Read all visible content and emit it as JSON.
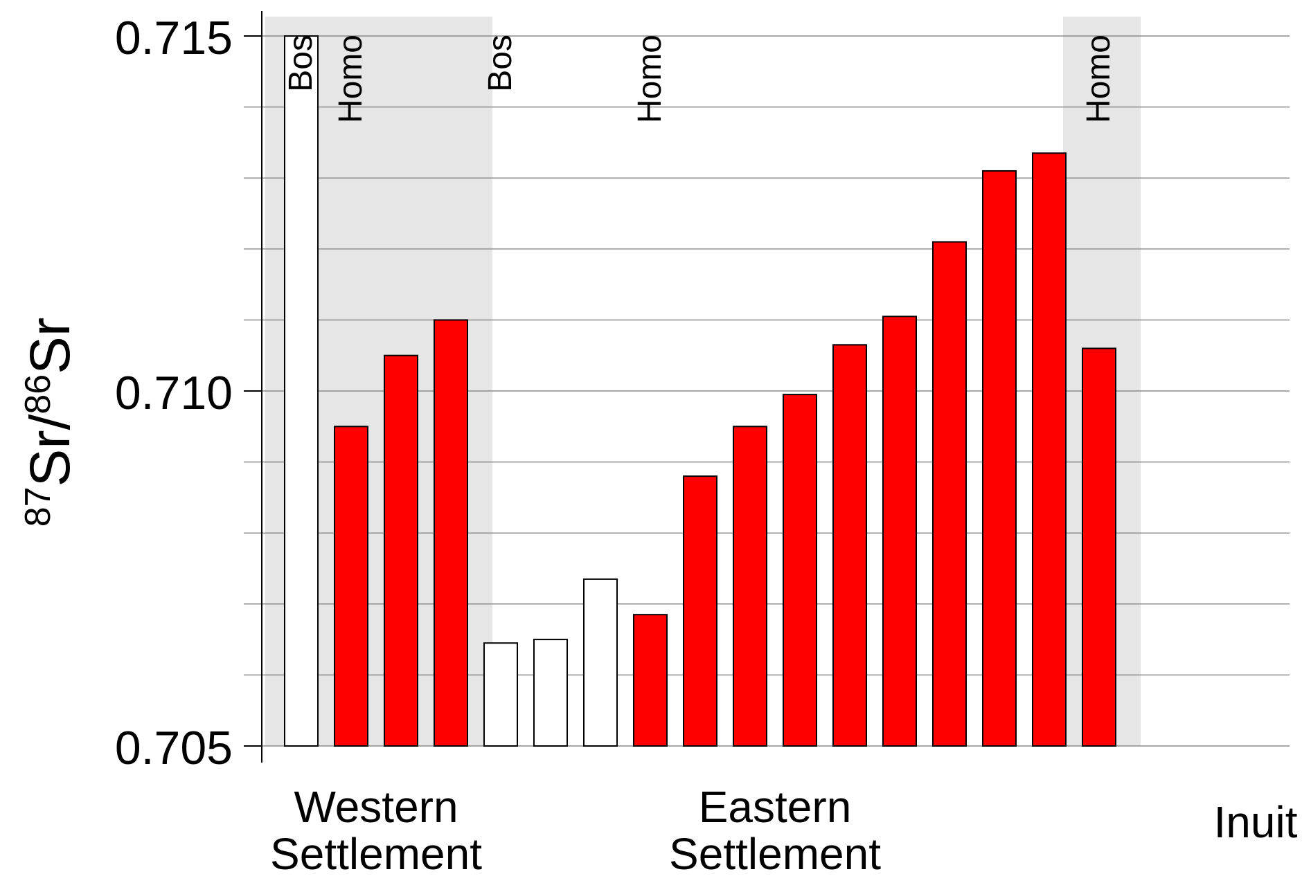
{
  "chart_data": {
    "type": "bar",
    "ylabel": {
      "prefix_sup": "87",
      "main1": "Sr/",
      "mid_sup": "86",
      "main2": "Sr"
    },
    "ylim": [
      0.705,
      0.715
    ],
    "yticks": [
      0.705,
      0.71,
      0.715
    ],
    "ytick_labels": [
      "0.705",
      "0.710",
      "0.715"
    ],
    "minor_step": 0.001,
    "groups": [
      {
        "label_lines": [
          "Western",
          "Settlement"
        ],
        "shaded": true,
        "bar_range": [
          0,
          3
        ]
      },
      {
        "label_lines": [
          "Eastern",
          "Settlement"
        ],
        "shaded": false,
        "bar_range": [
          4,
          15
        ]
      },
      {
        "label_lines": [
          "Inuit"
        ],
        "shaded": true,
        "bar_range": [
          16,
          16
        ]
      }
    ],
    "taxon_labels": [
      {
        "text": "Bos",
        "bar": 0
      },
      {
        "text": "Homo",
        "bar": 1
      },
      {
        "text": "Bos",
        "bar": 4
      },
      {
        "text": "Homo",
        "bar": 7
      },
      {
        "text": "Homo",
        "bar": 16
      }
    ],
    "bars": [
      {
        "taxon": "Bos",
        "settlement": "Western Settlement",
        "value": 0.715
      },
      {
        "taxon": "Homo",
        "settlement": "Western Settlement",
        "value": 0.7095
      },
      {
        "taxon": "Homo",
        "settlement": "Western Settlement",
        "value": 0.7105
      },
      {
        "taxon": "Homo",
        "settlement": "Western Settlement",
        "value": 0.711
      },
      {
        "taxon": "Bos",
        "settlement": "Eastern Settlement",
        "value": 0.70645
      },
      {
        "taxon": "Bos",
        "settlement": "Eastern Settlement",
        "value": 0.7065
      },
      {
        "taxon": "Bos",
        "settlement": "Eastern Settlement",
        "value": 0.70735
      },
      {
        "taxon": "Homo",
        "settlement": "Eastern Settlement",
        "value": 0.70685
      },
      {
        "taxon": "Homo",
        "settlement": "Eastern Settlement",
        "value": 0.7088
      },
      {
        "taxon": "Homo",
        "settlement": "Eastern Settlement",
        "value": 0.7095
      },
      {
        "taxon": "Homo",
        "settlement": "Eastern Settlement",
        "value": 0.70995
      },
      {
        "taxon": "Homo",
        "settlement": "Eastern Settlement",
        "value": 0.71065
      },
      {
        "taxon": "Homo",
        "settlement": "Eastern Settlement",
        "value": 0.71105
      },
      {
        "taxon": "Homo",
        "settlement": "Eastern Settlement",
        "value": 0.7121
      },
      {
        "taxon": "Homo",
        "settlement": "Eastern Settlement",
        "value": 0.7131
      },
      {
        "taxon": "Homo",
        "settlement": "Eastern Settlement",
        "value": 0.71335
      },
      {
        "taxon": "Homo",
        "settlement": "Inuit",
        "value": 0.7106
      }
    ],
    "colors": {
      "Homo": "#ff0000",
      "Bos": "#ffffff",
      "shade": "#e6e6e6",
      "grid": "#8c8c8c"
    },
    "grid": true,
    "legend": "none"
  }
}
